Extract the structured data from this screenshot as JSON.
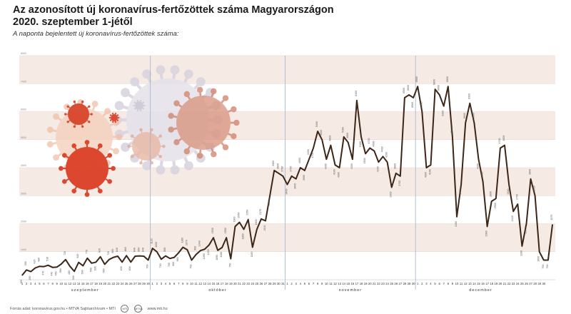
{
  "header": {
    "title_line1": "Az azonosított új koronavírus-fertőzöttek száma Magyarországon",
    "title_line2": "2020. szeptember 1-jétől",
    "subtitle": "A naponta bejelentett új koronavírus-fertőzöttek száma:"
  },
  "footer": {
    "source": "Forrás adat: koronavirus.gov.hu • MTVA Sajtóarchívum • MTI",
    "logo1": "MTI",
    "logo2": "MTVA",
    "site": "www.mti.hu"
  },
  "chart_data": {
    "type": "line",
    "title": "Az azonosított új koronavírus-fertőzöttek száma Magyarországon",
    "subtitle": "A naponta bejelentett új koronavírus-fertőzöttek száma:",
    "ylim": [
      0,
      8000
    ],
    "yticks": [
      1000,
      2000,
      3000,
      4000,
      5000,
      6000,
      7000,
      8000
    ],
    "grid": true,
    "months": [
      {
        "name": "szeptember",
        "days": 30
      },
      {
        "name": "október",
        "days": 31
      },
      {
        "name": "november",
        "days": 30
      },
      {
        "name": "december",
        "days": 30
      }
    ],
    "series": [
      {
        "values": [
          160,
          350,
          290,
          420,
          480,
          470,
          516,
          440,
          450,
          560,
          720,
          480,
          300,
          620,
          500,
          770,
          590,
          630,
          820,
          550,
          720,
          800,
          840,
          630,
          860,
          630,
          840,
          850,
          840,
          700,
          1120,
          1000,
          730,
          850,
          760,
          800,
          960,
          1160,
          1070,
          700,
          900,
          1040,
          1090,
          1240,
          1500,
          1050,
          1150,
          1500,
          750,
          1900,
          2050,
          1800,
          2150,
          1160,
          1800,
          2170,
          2104,
          3000,
          3900,
          3800,
          3700,
          3400,
          3700,
          3600,
          4000,
          3900,
          4300,
          4700,
          5300,
          5000,
          4300,
          4800,
          4100,
          4000,
          5100,
          4900,
          4300,
          6400,
          5100,
          4500,
          4700,
          4600,
          4200,
          4400,
          4200,
          3300,
          3800,
          3700,
          6500,
          6600,
          6500,
          6900,
          6000,
          4000,
          4100,
          6800,
          6600,
          6200,
          6900,
          5100,
          2250,
          3400,
          5600,
          6300,
          5600,
          4300,
          3500,
          1900,
          2800,
          2900,
          4700,
          4800,
          3400,
          2440,
          2700,
          1200,
          2000,
          3600,
          3000,
          1000,
          700,
          700,
          1970
        ]
      }
    ]
  }
}
